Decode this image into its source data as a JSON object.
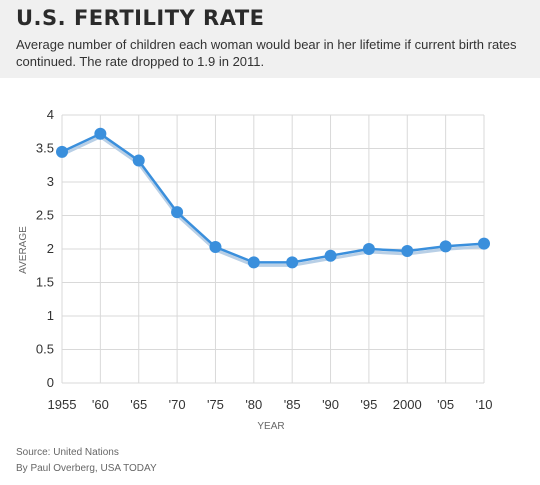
{
  "header": {
    "title": "U.S. FERTILITY RATE",
    "subtitle": "Average number of children each woman would bear in her lifetime if current birth rates continued. The rate dropped to 1.9 in 2011."
  },
  "footer": {
    "source": "Source: United Nations",
    "credit": "By Paul Overberg, USA TODAY"
  },
  "colors": {
    "line": "#3a8fdc",
    "shadow": "#b8cfe6",
    "grid": "#d9d9d9",
    "header_bg": "#f0f0f0"
  },
  "chart_data": {
    "type": "line",
    "categories": [
      "1955",
      "'60",
      "'65",
      "'70",
      "'75",
      "'80",
      "'85",
      "'90",
      "'95",
      "2000",
      "'05",
      "'10"
    ],
    "series": [
      {
        "values": [
          3.45,
          3.72,
          3.32,
          2.55,
          2.03,
          1.8,
          1.8,
          1.9,
          2.0,
          1.97,
          2.04,
          2.08
        ]
      }
    ],
    "y_ticks": [
      "0",
      "0.5",
      "1",
      "1.5",
      "2",
      "2.5",
      "3",
      "3.5",
      "4"
    ],
    "ylim": [
      0,
      4
    ],
    "xlabel": "YEAR",
    "ylabel": "AVERAGE",
    "grid": true
  }
}
